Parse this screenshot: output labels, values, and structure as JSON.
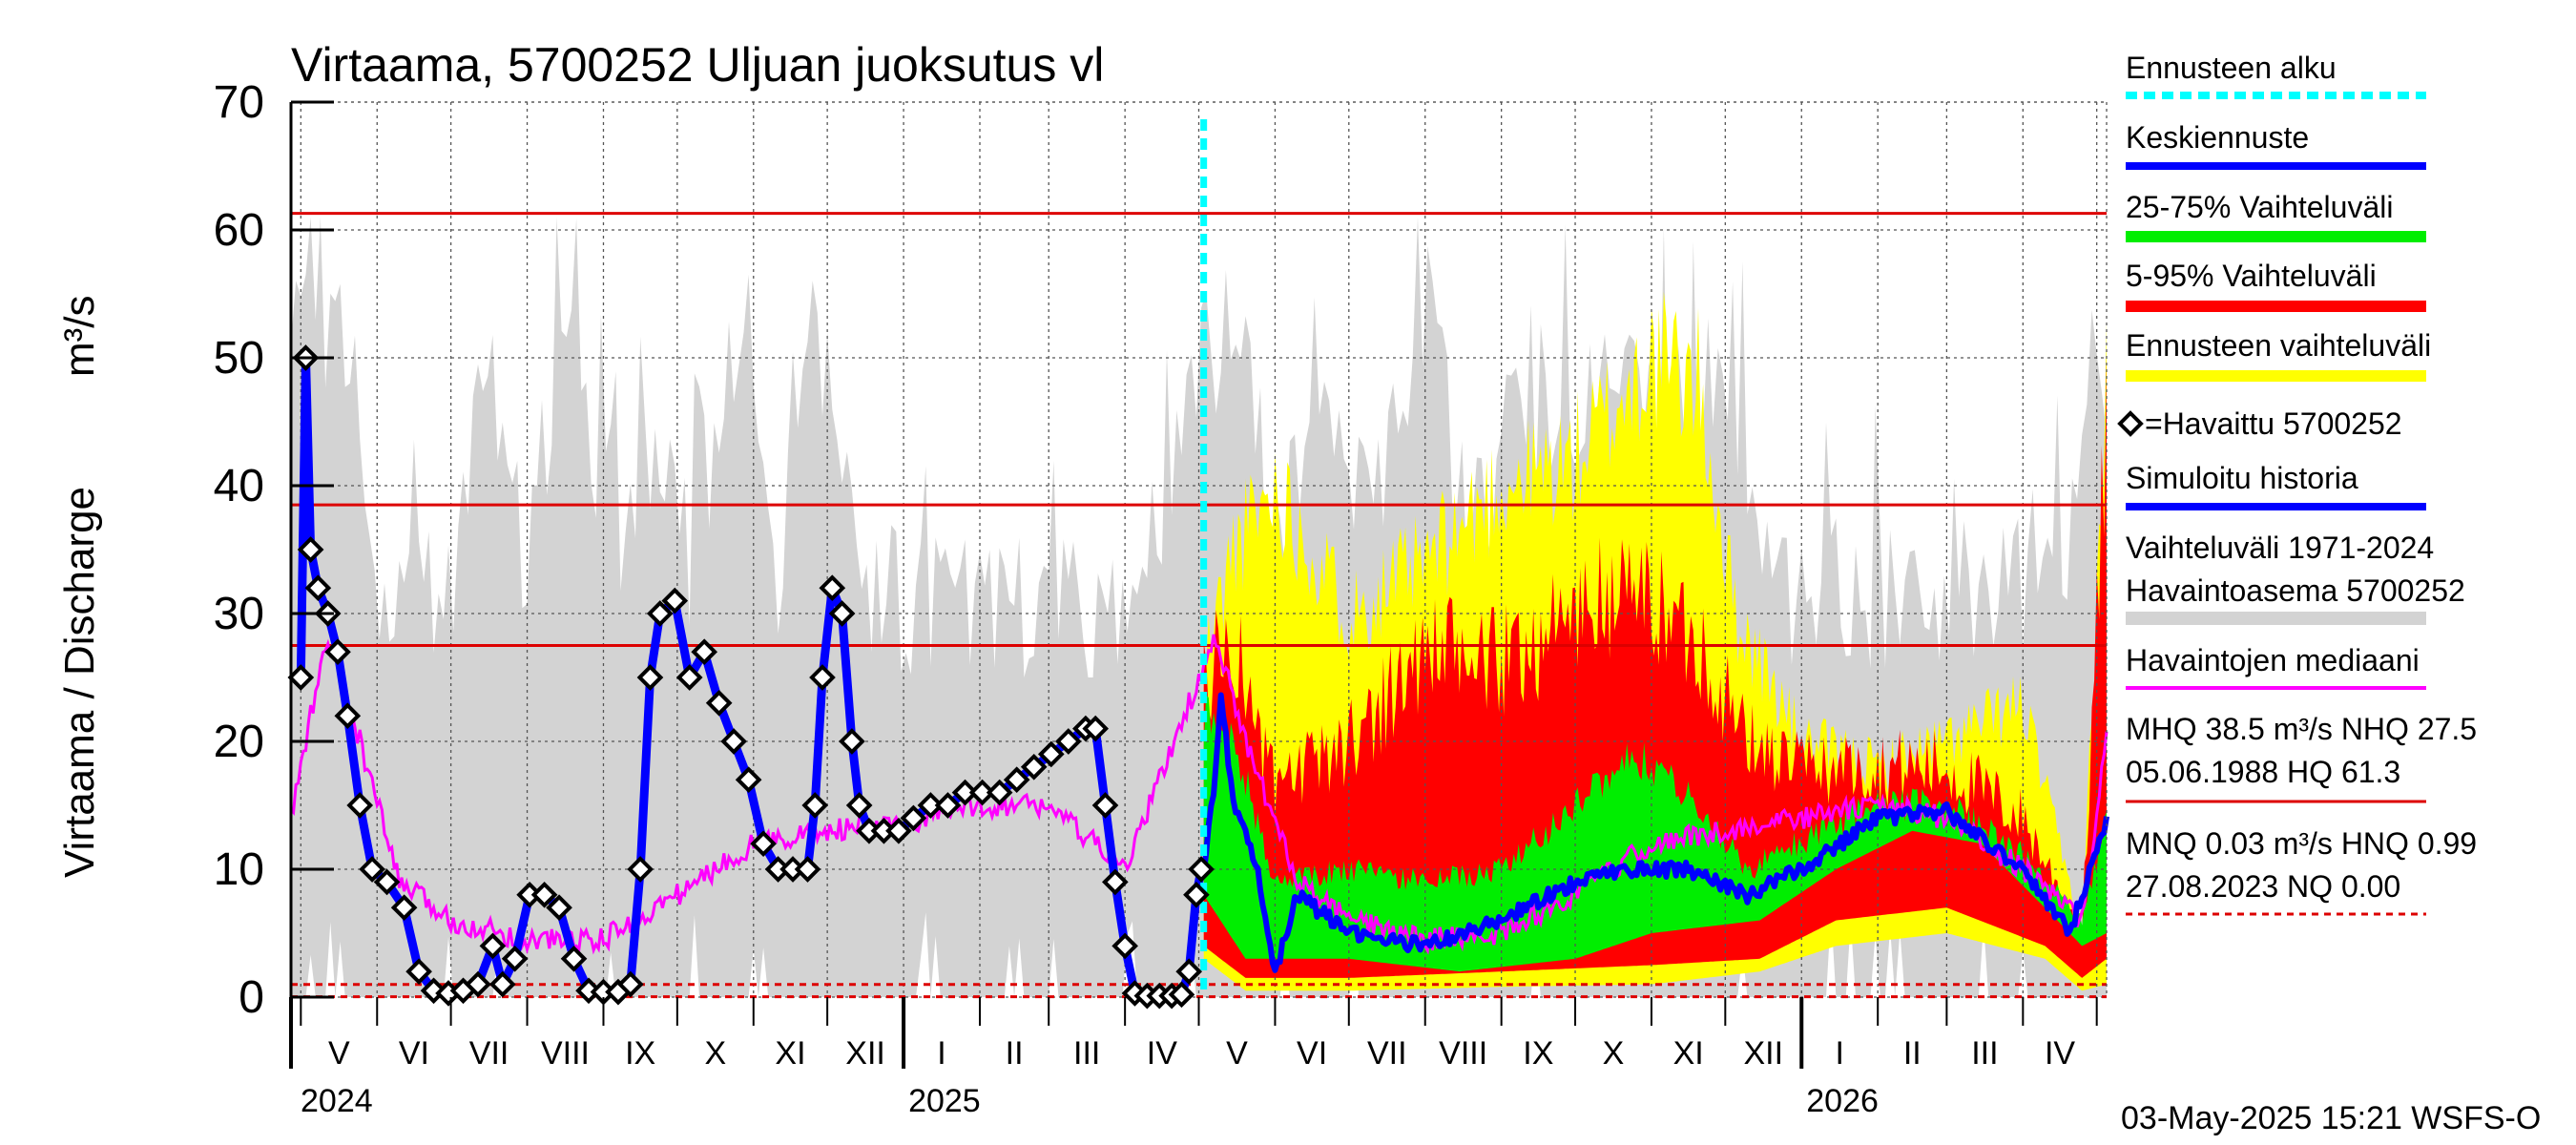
{
  "chart_data": {
    "type": "line",
    "title": "Virtaama, 5700252 Uljuan juoksutus vl",
    "ylabel": "Virtaama / Discharge",
    "yunit": "m³/s",
    "ylim": [
      0,
      70
    ],
    "yticks": [
      "0",
      "10",
      "20",
      "30",
      "40",
      "50",
      "60",
      "70"
    ],
    "month_labels": [
      "V",
      "VI",
      "VII",
      "VIII",
      "IX",
      "X",
      "XI",
      "XII",
      "I",
      "II",
      "III",
      "IV",
      "V",
      "VI",
      "VII",
      "VIII",
      "IX",
      "X",
      "XI",
      "XII",
      "I",
      "II",
      "III",
      "IV"
    ],
    "year_labels": [
      "2024",
      "2025",
      "2026"
    ],
    "forecast_start": "2025-05-03",
    "reference_lines": [
      {
        "name": "HQ",
        "value": 61.3
      },
      {
        "name": "MHQ",
        "value": 38.5
      },
      {
        "name": "NHQ",
        "value": 27.5
      },
      {
        "name": "HNQ",
        "value": 0.99
      },
      {
        "name": "MNQ",
        "value": 0.03
      }
    ],
    "observed_ticks": [
      "2024-05-01",
      "2024-05-03",
      "2024-05-05",
      "2024-05-08",
      "2024-05-12",
      "2024-05-16",
      "2024-05-20",
      "2024-05-25",
      "2024-05-30",
      "2024-06-05",
      "2024-06-12",
      "2024-06-18",
      "2024-06-24",
      "2024-06-30",
      "2024-07-06",
      "2024-07-12",
      "2024-07-18",
      "2024-07-22",
      "2024-07-27",
      "2024-08-02",
      "2024-08-08",
      "2024-08-14",
      "2024-08-20",
      "2024-08-26",
      "2024-09-01",
      "2024-09-07",
      "2024-09-12",
      "2024-09-16",
      "2024-09-20",
      "2024-09-24",
      "2024-09-30",
      "2024-10-06",
      "2024-10-12",
      "2024-10-18",
      "2024-10-24",
      "2024-10-30",
      "2024-11-05",
      "2024-11-11",
      "2024-11-17",
      "2024-11-23",
      "2024-11-26",
      "2024-11-29",
      "2024-12-03",
      "2024-12-07",
      "2024-12-11",
      "2024-12-14",
      "2024-12-18",
      "2024-12-24",
      "2024-12-30",
      "2025-01-05",
      "2025-01-12",
      "2025-01-19",
      "2025-01-26",
      "2025-02-02",
      "2025-02-09",
      "2025-02-16",
      "2025-02-23",
      "2025-03-02",
      "2025-03-09",
      "2025-03-16",
      "2025-03-20",
      "2025-03-24",
      "2025-03-28",
      "2025-04-01",
      "2025-04-05",
      "2025-04-10",
      "2025-04-15",
      "2025-04-20",
      "2025-04-24",
      "2025-04-27",
      "2025-04-30",
      "2025-05-02"
    ],
    "observed_values": [
      25,
      50,
      35,
      32,
      30,
      27,
      22,
      15,
      10,
      9,
      7,
      2,
      0.5,
      0.3,
      0.5,
      1,
      4,
      1,
      3,
      8,
      8,
      7,
      3,
      0.5,
      0.4,
      0.4,
      1,
      10,
      25,
      30,
      31,
      25,
      27,
      23,
      20,
      17,
      12,
      10,
      10,
      10,
      15,
      25,
      32,
      30,
      20,
      15,
      13,
      13,
      13,
      14,
      15,
      15,
      16,
      16,
      16,
      17,
      18,
      19,
      20,
      21,
      21,
      15,
      9,
      4,
      0.3,
      0.1,
      0.1,
      0.1,
      0.2,
      2,
      8,
      10
    ],
    "observed_label": "=Havaittu 5700252",
    "timestamp": "03-May-2025 15:21 WSFS-O",
    "legend": {
      "forecast_start": "Ennusteen alku",
      "mean_forecast": "Keskiennuste",
      "band_25_75": "25-75% Vaihteluväli",
      "band_5_95": "5-95% Vaihteluväli",
      "band_forecast": "Ennusteen vaihteluväli",
      "observed": "=Havaittu 5700252",
      "simulated": "Simuloitu historia",
      "range_line1": "Vaihteluväli 1971-2024",
      "range_line2": " Havaintoasema 5700252",
      "median": "Havaintojen mediaani",
      "high_line1": "MHQ 38.5 m³/s NHQ 27.5",
      "high_line2": "05.06.1988 HQ 61.3",
      "low_line1": "MNQ 0.03 m³/s HNQ 0.99",
      "low_line2": "27.08.2023 NQ 0.00"
    },
    "colors": {
      "range": "#d3d3d3",
      "band_forecast": "#ffff00",
      "band_5_95": "#ff0000",
      "band_25_75": "#00ee00",
      "mean": "#0000ff",
      "median": "#ff00ff",
      "forecast_start": "#00ffff",
      "ref_lines": "#dd0000"
    }
  }
}
